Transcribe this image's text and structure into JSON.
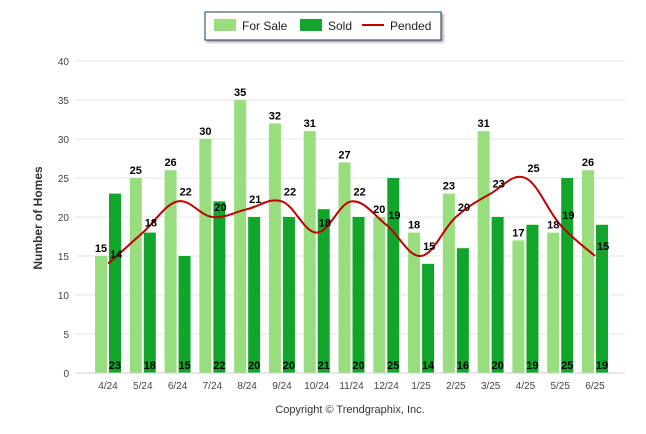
{
  "chart_data": {
    "type": "bar",
    "categories": [
      "4/24",
      "5/24",
      "6/24",
      "7/24",
      "8/24",
      "9/24",
      "10/24",
      "11/24",
      "12/24",
      "1/25",
      "2/25",
      "3/25",
      "4/25",
      "5/25",
      "6/25"
    ],
    "series": [
      {
        "name": "For Sale",
        "type": "bar",
        "color": "#99de7e",
        "values": [
          15,
          25,
          26,
          30,
          35,
          32,
          31,
          27,
          20,
          18,
          23,
          31,
          17,
          18,
          26
        ]
      },
      {
        "name": "Sold",
        "type": "bar",
        "color": "#12a52b",
        "values": [
          23,
          18,
          15,
          22,
          20,
          20,
          21,
          20,
          25,
          14,
          16,
          20,
          19,
          25,
          19
        ]
      },
      {
        "name": "Pended",
        "type": "line",
        "color": "#c00000",
        "values": [
          14,
          18,
          22,
          20,
          21,
          22,
          18,
          22,
          19,
          15,
          20,
          23,
          25,
          19,
          15
        ]
      }
    ],
    "title": "",
    "xlabel": "",
    "ylabel": "Number of Homes",
    "ylim": [
      0,
      40
    ],
    "yticks": [
      0,
      5,
      10,
      15,
      20,
      25,
      30,
      35,
      40
    ],
    "grid": true,
    "legend_position": "top-center",
    "footer": "Copyright © Trendgraphix, Inc."
  }
}
